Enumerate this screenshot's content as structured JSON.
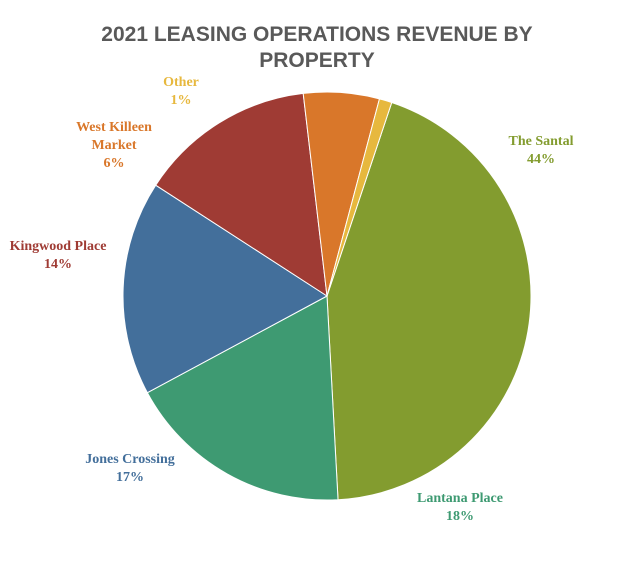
{
  "chart_data": {
    "type": "pie",
    "title_lines": [
      "2021 LEASING OPERATIONS REVENUE BY",
      "PROPERTY"
    ],
    "slices": [
      {
        "label": "The Santal",
        "value": 44,
        "pct_label": "44%",
        "color": "#839c2f",
        "text_color": "#839c2f"
      },
      {
        "label": "Lantana Place",
        "value": 18,
        "pct_label": "18%",
        "color": "#3e9a72",
        "text_color": "#3e9a72"
      },
      {
        "label": "Jones Crossing",
        "value": 17,
        "pct_label": "17%",
        "color": "#436f9b",
        "text_color": "#436f9b"
      },
      {
        "label": "Kingwood Place",
        "value": 14,
        "pct_label": "14%",
        "color": "#9f3b34",
        "text_color": "#9f3b34"
      },
      {
        "label": "West Killeen Market",
        "label_lines": [
          "West Killeen",
          "Market"
        ],
        "value": 6,
        "pct_label": "6%",
        "color": "#d9772a",
        "text_color": "#d9772a"
      },
      {
        "label": "Other",
        "value": 1,
        "pct_label": "1%",
        "color": "#e7b83e",
        "text_color": "#e7b83e"
      }
    ]
  }
}
